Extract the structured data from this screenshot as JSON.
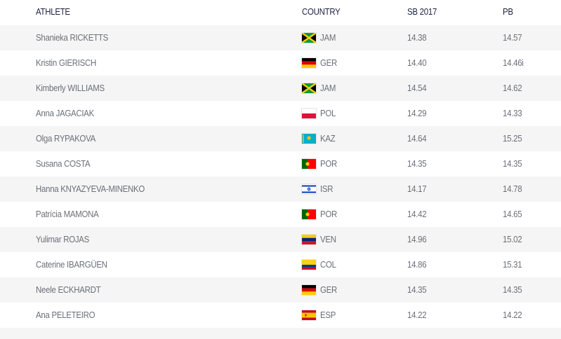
{
  "headers": {
    "athlete": "ATHLETE",
    "country": "COUNTRY",
    "sb": "SB 2017",
    "pb": "PB"
  },
  "rows": [
    {
      "athlete": "Shanieka RICKETTS",
      "flag": "JAM",
      "country": "JAM",
      "sb": "14.38",
      "pb": "14.57"
    },
    {
      "athlete": "Kristin GIERISCH",
      "flag": "GER",
      "country": "GER",
      "sb": "14.40",
      "pb": "14.46i"
    },
    {
      "athlete": "Kimberly WILLIAMS",
      "flag": "JAM",
      "country": "JAM",
      "sb": "14.54",
      "pb": "14.62"
    },
    {
      "athlete": "Anna JAGACIAK",
      "flag": "POL",
      "country": "POL",
      "sb": "14.29",
      "pb": "14.33"
    },
    {
      "athlete": "Olga RYPAKOVA",
      "flag": "KAZ",
      "country": "KAZ",
      "sb": "14.64",
      "pb": "15.25"
    },
    {
      "athlete": "Susana COSTA",
      "flag": "POR",
      "country": "POR",
      "sb": "14.35",
      "pb": "14.35"
    },
    {
      "athlete": "Hanna KNYAZYEVA-MINENKO",
      "flag": "ISR",
      "country": "ISR",
      "sb": "14.17",
      "pb": "14.78"
    },
    {
      "athlete": "Patrícia MAMONA",
      "flag": "POR",
      "country": "POR",
      "sb": "14.42",
      "pb": "14.65"
    },
    {
      "athlete": "Yulimar ROJAS",
      "flag": "VEN",
      "country": "VEN",
      "sb": "14.96",
      "pb": "15.02"
    },
    {
      "athlete": "Caterine IBARGÜEN",
      "flag": "COL",
      "country": "COL",
      "sb": "14.86",
      "pb": "15.31"
    },
    {
      "athlete": "Neele ECKHARDT",
      "flag": "GER",
      "country": "GER",
      "sb": "14.35",
      "pb": "14.35"
    },
    {
      "athlete": "Ana PELETEIRO",
      "flag": "ESP",
      "country": "ESP",
      "sb": "14.22",
      "pb": "14.22"
    }
  ]
}
